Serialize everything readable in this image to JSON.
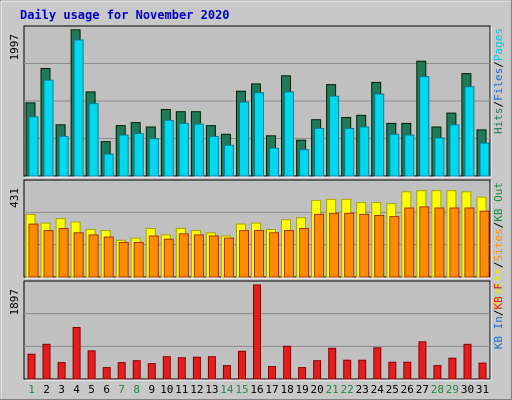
{
  "chart_data": {
    "type": "bar",
    "title": "Daily usage for November 2020",
    "colors": {
      "hits": "#1e7a5a",
      "files": "#00d8f0",
      "pages": "#00e0f0",
      "visits": "#ffff00",
      "sites": "#ff8c00",
      "kbytes": "#e41e1e",
      "weekend_day": "#1e8a44",
      "weekday": "#1414b4",
      "title": "#0000c8"
    },
    "categories": [
      "1",
      "2",
      "3",
      "4",
      "5",
      "6",
      "7",
      "8",
      "9",
      "10",
      "11",
      "12",
      "13",
      "14",
      "15",
      "16",
      "17",
      "18",
      "19",
      "20",
      "21",
      "22",
      "23",
      "24",
      "25",
      "26",
      "27",
      "28",
      "29",
      "30",
      "31"
    ],
    "weekend_days": [
      1,
      7,
      8,
      14,
      15,
      21,
      22,
      28,
      29
    ],
    "panels": [
      {
        "id": "top",
        "ymax_label": "1997",
        "ymax": 1997,
        "legend": [
          {
            "text": "Hits",
            "color": "#1e7a5a"
          },
          {
            "text": "Files",
            "color": "#1e6ec8"
          },
          {
            "text": "Pages",
            "color": "#00c8e0"
          }
        ],
        "series": [
          {
            "name": "Hits",
            "values": [
              1000,
              1470,
              700,
              2000,
              1150,
              470,
              690,
              730,
              670,
              910,
              880,
              880,
              690,
              570,
              1160,
              1260,
              550,
              1370,
              490,
              770,
              1250,
              800,
              830,
              1280,
              720,
              720,
              1570,
              670,
              860,
              1400,
              630
            ]
          },
          {
            "name": "Files",
            "values": [
              810,
              1310,
              540,
              1860,
              990,
              300,
              560,
              580,
              510,
              760,
              720,
              710,
              540,
              420,
              1010,
              1140,
              380,
              1150,
              360,
              650,
              1090,
              650,
              670,
              1120,
              570,
              560,
              1360,
              520,
              700,
              1220,
              450
            ]
          }
        ]
      },
      {
        "id": "middle",
        "ymax_label": "431",
        "ymax": 431,
        "legend": [
          {
            "text": "Visits",
            "color": "#e8e800"
          },
          {
            "text": "Sites",
            "color": "#ff8c00"
          },
          {
            "text": "KB Out",
            "color": "#1e8a44"
          }
        ],
        "series": [
          {
            "name": "Visits",
            "values": [
              290,
              250,
              270,
              255,
              220,
              215,
              170,
              180,
              225,
              195,
              225,
              215,
              205,
              190,
              245,
              250,
              220,
              265,
              275,
              355,
              360,
              360,
              345,
              345,
              340,
              395,
              400,
              400,
              400,
              395,
              370
            ]
          },
          {
            "name": "Sites",
            "values": [
              245,
              215,
              225,
              205,
              195,
              185,
              160,
              160,
              190,
              175,
              200,
              195,
              190,
              180,
              215,
              215,
              205,
              215,
              225,
              290,
              295,
              295,
              290,
              285,
              280,
              320,
              325,
              320,
              320,
              320,
              305
            ]
          }
        ]
      },
      {
        "id": "bottom",
        "ymax_label": "1897",
        "ymax": 1897,
        "legend": [
          {
            "text": "KB In",
            "color": "#1e6ec8"
          },
          {
            "text": "KB F",
            "color": "#e41e1e"
          }
        ],
        "series": [
          {
            "name": "KB F",
            "values": [
              500,
              700,
              330,
              1040,
              570,
              230,
              330,
              370,
              310,
              450,
              430,
              440,
              450,
              270,
              560,
              1900,
              250,
              660,
              230,
              370,
              620,
              380,
              380,
              630,
              340,
              340,
              750,
              270,
              420,
              700,
              320
            ]
          }
        ]
      }
    ]
  }
}
